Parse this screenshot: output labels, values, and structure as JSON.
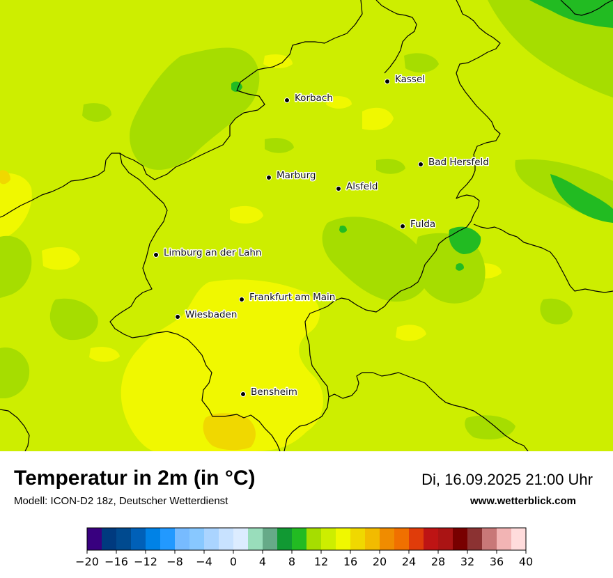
{
  "map": {
    "cities": [
      {
        "name": "Kassel"
      },
      {
        "name": "Korbach"
      },
      {
        "name": "Bad Hersfeld"
      },
      {
        "name": "Marburg"
      },
      {
        "name": "Alsfeld"
      },
      {
        "name": "Fulda"
      },
      {
        "name": "Limburg an der Lahn"
      },
      {
        "name": "Frankfurt am Main"
      },
      {
        "name": "Wiesbaden"
      },
      {
        "name": "Bensheim"
      }
    ],
    "field_colors": {
      "range_12_14": "#a6dd00",
      "range_14_16": "#cdee00",
      "range_16_18": "#f0f800",
      "range_18_20": "#f0d800",
      "range_10_12": "#22bb22"
    },
    "border_color": "#000000"
  },
  "header": {
    "title": "Temperatur in 2m (in °C)",
    "model": "Modell: ICON-D2 18z, Deutscher Wetterdienst",
    "datetime": "Di, 16.09.2025 21:00 Uhr",
    "website": "www.wetterblick.com"
  },
  "colorbar": {
    "min": -20,
    "max": 40,
    "step": 2,
    "tick_labels": [
      "−20",
      "−16",
      "−12",
      "−8",
      "−4",
      "0",
      "4",
      "8",
      "12",
      "16",
      "20",
      "24",
      "28",
      "32",
      "36",
      "40"
    ],
    "colors": [
      "#38007f",
      "#003a7f",
      "#004a8f",
      "#0060b8",
      "#0082e6",
      "#2299ff",
      "#77bbff",
      "#88c8ff",
      "#aad4ff",
      "#c8e2ff",
      "#dcecff",
      "#99ddbb",
      "#66aa88",
      "#119933",
      "#22bb22",
      "#a6dd00",
      "#cdee00",
      "#f0f800",
      "#f0d800",
      "#f2bb00",
      "#f08c00",
      "#f07000",
      "#e03c0a",
      "#be1414",
      "#aa1414",
      "#780000",
      "#8b3232",
      "#c87878",
      "#f2b4b4",
      "#ffdcdc"
    ]
  }
}
